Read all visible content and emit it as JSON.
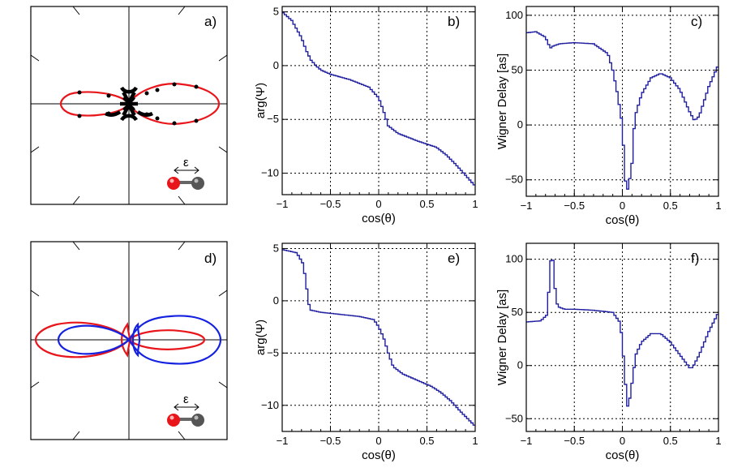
{
  "chart_data": [
    {
      "panel": "a",
      "type": "polar",
      "label": "a)",
      "epsilon_label": "ε",
      "series": [
        {
          "name": "red-lobe",
          "color": "#e8151b",
          "x": [
            -0.35,
            -0.14,
            0.03,
            0.36,
            0.55
          ],
          "y": [
            0.12,
            0.12,
            0.0,
            0.24,
            0.19
          ]
        },
        {
          "name": "black-lobe-cluster",
          "color": "#000000",
          "x": [
            -0.06,
            -0.03,
            0.0,
            0.03,
            0.06
          ],
          "y": [
            0.18,
            0.12,
            0.0,
            -0.12,
            -0.18
          ]
        }
      ]
    },
    {
      "panel": "b",
      "type": "line",
      "label": "b)",
      "xlabel": "cos(θ)",
      "ylabel": "arg(Ψ)",
      "xlim": [
        -1,
        1
      ],
      "ylim": [
        -12,
        5.5
      ],
      "xticks": [
        -1,
        -0.5,
        0,
        0.5,
        1
      ],
      "xticklabels": [
        "−1",
        "−0.5",
        "0",
        "0.5",
        "1"
      ],
      "yticks": [
        5,
        0,
        -5,
        -10
      ],
      "yticklabels": [
        "5",
        "0",
        "−5",
        "−10"
      ],
      "color": "#1f1fa0",
      "x": [
        -1,
        -0.9,
        -0.8,
        -0.75,
        -0.7,
        -0.65,
        -0.6,
        -0.5,
        -0.3,
        -0.1,
        0,
        0.05,
        0.1,
        0.2,
        0.4,
        0.6,
        0.7,
        0.8,
        0.9,
        1
      ],
      "y": [
        5.0,
        4.2,
        2.6,
        1.4,
        0.5,
        0.0,
        -0.4,
        -0.8,
        -1.3,
        -2.0,
        -3.0,
        -4.2,
        -5.6,
        -6.3,
        -7.0,
        -7.6,
        -8.3,
        -9.2,
        -10.2,
        -11.2
      ]
    },
    {
      "panel": "c",
      "type": "line",
      "label": "c)",
      "xlabel": "cos(θ)",
      "ylabel": "Wigner Delay [as]",
      "xlim": [
        -1,
        1
      ],
      "ylim": [
        -65,
        108
      ],
      "xticks": [
        -1,
        -0.5,
        0,
        0.5,
        1
      ],
      "xticklabels": [
        "−1",
        "−0.5",
        "0",
        "0.5",
        "1"
      ],
      "yticks": [
        100,
        50,
        0,
        -50
      ],
      "yticklabels": [
        "100",
        "50",
        "0",
        "−50"
      ],
      "color": "#1f1fa0",
      "x": [
        -1,
        -0.9,
        -0.8,
        -0.75,
        -0.72,
        -0.65,
        -0.5,
        -0.3,
        -0.15,
        -0.1,
        -0.05,
        0,
        0.03,
        0.06,
        0.1,
        0.12,
        0.14,
        0.2,
        0.3,
        0.4,
        0.5,
        0.6,
        0.7,
        0.75,
        0.8,
        0.9,
        1
      ],
      "y": [
        84,
        85,
        80,
        70,
        72,
        74,
        75,
        74,
        65,
        50,
        28,
        0,
        -50,
        -60,
        -35,
        -5,
        10,
        28,
        43,
        47,
        43,
        32,
        12,
        4,
        8,
        35,
        55
      ]
    },
    {
      "panel": "d",
      "type": "polar",
      "label": "d)",
      "epsilon_label": "ε",
      "series": [
        {
          "name": "red-lobe",
          "color": "#e8151b",
          "x": [
            -0.55,
            0.05,
            0.5
          ],
          "y": [
            0.15,
            0.0,
            0.1
          ]
        },
        {
          "name": "blue-lobe",
          "color": "#1422e0",
          "x": [
            -0.45,
            0.05,
            0.62
          ],
          "y": [
            0.14,
            0.0,
            0.2
          ]
        }
      ]
    },
    {
      "panel": "e",
      "type": "line",
      "label": "e)",
      "xlabel": "cos(θ)",
      "ylabel": "arg(Ψ)",
      "xlim": [
        -1,
        1
      ],
      "ylim": [
        -12.5,
        5.5
      ],
      "xticks": [
        -1,
        -0.5,
        0,
        0.5,
        1
      ],
      "xticklabels": [
        "−1",
        "−0.5",
        "0",
        "0.5",
        "1"
      ],
      "yticks": [
        5,
        0,
        -5,
        -10
      ],
      "yticklabels": [
        "5",
        "0",
        "−5",
        "−10"
      ],
      "color": "#1f1fa0",
      "x": [
        -1,
        -0.85,
        -0.78,
        -0.75,
        -0.72,
        -0.7,
        -0.6,
        -0.4,
        -0.2,
        -0.05,
        0,
        0.05,
        0.1,
        0.15,
        0.25,
        0.4,
        0.55,
        0.65,
        0.75,
        0.85,
        1
      ],
      "y": [
        4.9,
        4.6,
        3.5,
        1.5,
        -0.5,
        -0.9,
        -1.1,
        -1.3,
        -1.5,
        -1.8,
        -2.5,
        -3.5,
        -5.0,
        -6.3,
        -7.0,
        -7.6,
        -8.2,
        -8.8,
        -9.6,
        -10.6,
        -12.0
      ]
    },
    {
      "panel": "f",
      "type": "line",
      "label": "f)",
      "xlabel": "cos(θ)",
      "ylabel": "Wigner Delay [as]",
      "xlim": [
        -1,
        1
      ],
      "ylim": [
        -62,
        115
      ],
      "xticks": [
        -1,
        -0.5,
        0,
        0.5,
        1
      ],
      "xticklabels": [
        "−1",
        "−0.5",
        "0",
        "0.5",
        "1"
      ],
      "yticks": [
        100,
        50,
        0,
        -50
      ],
      "yticklabels": [
        "100",
        "50",
        "0",
        "−50"
      ],
      "color": "#1f1fa0",
      "x": [
        -1,
        -0.85,
        -0.78,
        -0.75,
        -0.73,
        -0.71,
        -0.69,
        -0.66,
        -0.6,
        -0.5,
        -0.3,
        -0.1,
        -0.02,
        0.02,
        0.05,
        0.08,
        0.11,
        0.14,
        0.2,
        0.3,
        0.4,
        0.5,
        0.6,
        0.7,
        0.73,
        0.8,
        0.9,
        1
      ],
      "y": [
        41,
        42,
        48,
        95,
        108,
        85,
        60,
        55,
        53,
        53,
        52,
        50,
        40,
        0,
        -40,
        -30,
        -10,
        10,
        22,
        30,
        30,
        22,
        10,
        -2,
        -2,
        10,
        32,
        50
      ]
    }
  ]
}
